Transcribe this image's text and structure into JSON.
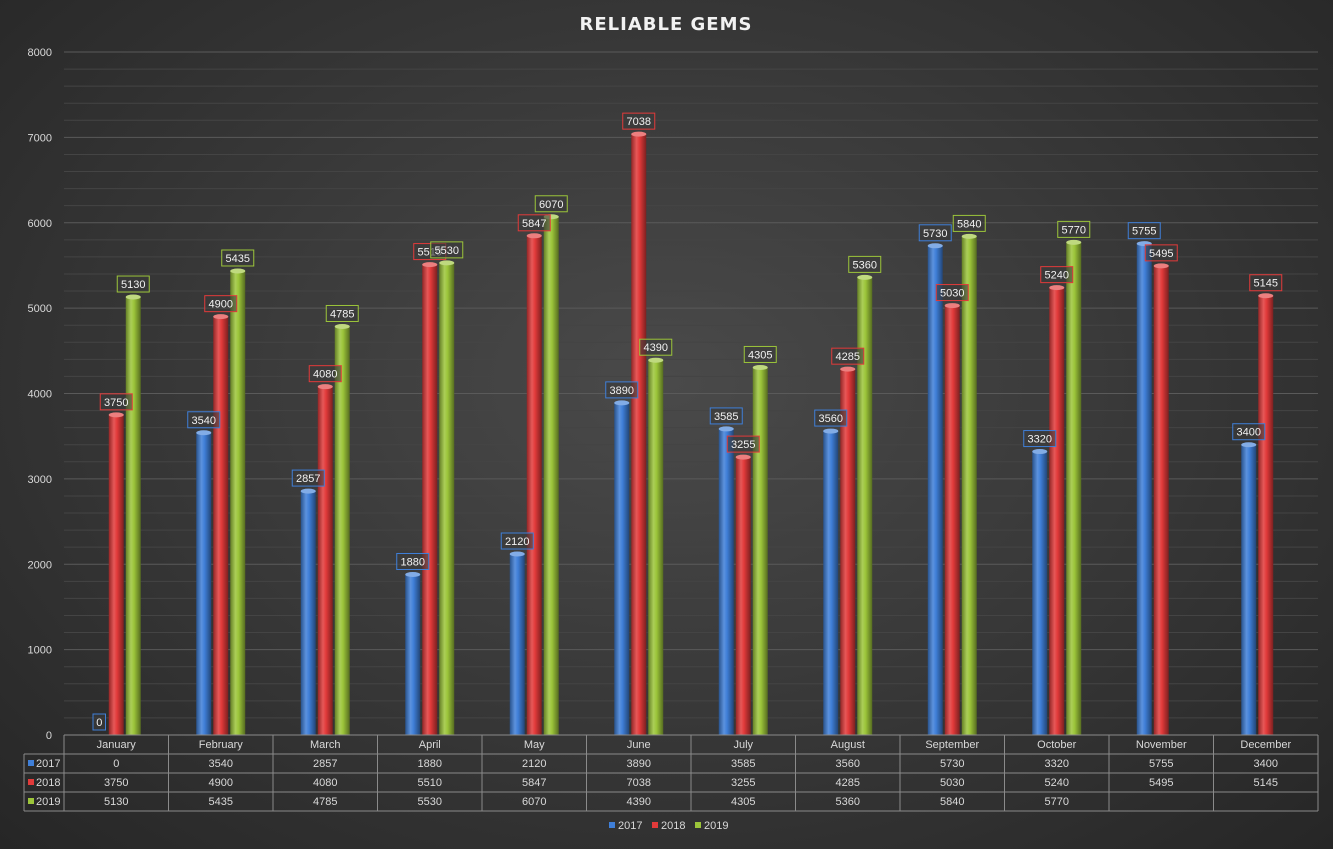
{
  "chart_data": {
    "type": "bar",
    "title": "RELIABLE GEMS",
    "categories": [
      "January",
      "February",
      "March",
      "April",
      "May",
      "June",
      "July",
      "August",
      "September",
      "October",
      "November",
      "December"
    ],
    "series": [
      {
        "name": "2017",
        "color": "#3f7fd8",
        "values": [
          0,
          3540,
          2857,
          1880,
          2120,
          3890,
          3585,
          3560,
          5730,
          3320,
          5755,
          3400
        ]
      },
      {
        "name": "2018",
        "color": "#e23a3a",
        "values": [
          3750,
          4900,
          4080,
          5510,
          5847,
          7038,
          3255,
          4285,
          5030,
          5240,
          5495,
          5145
        ]
      },
      {
        "name": "2019",
        "color": "#9cc53a",
        "values": [
          5130,
          5435,
          4785,
          5530,
          6070,
          4390,
          4305,
          5360,
          5840,
          5770,
          null,
          null
        ]
      }
    ],
    "ylim": [
      0,
      8000
    ],
    "yticks": [
      0,
      1000,
      2000,
      3000,
      4000,
      5000,
      6000,
      7000,
      8000
    ],
    "data_labels": true,
    "data_table": true,
    "grid": true,
    "legend_position": "bottom",
    "background": "#3a3a3a"
  }
}
